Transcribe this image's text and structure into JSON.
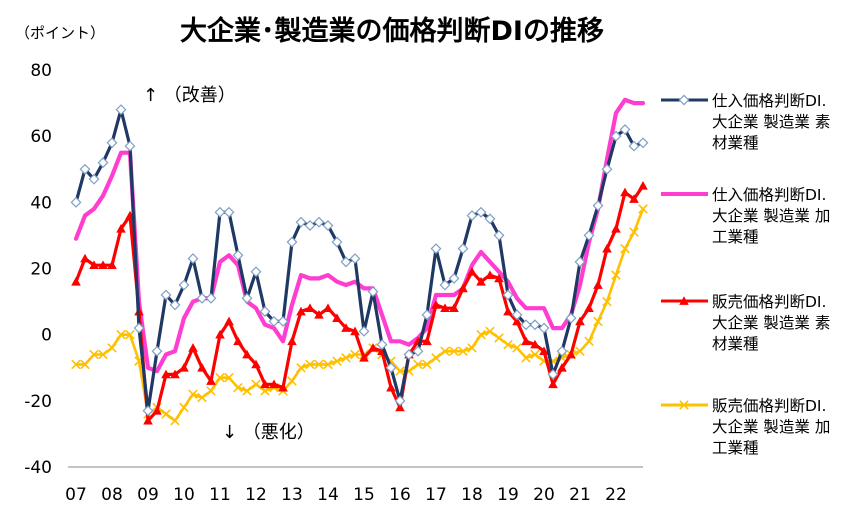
{
  "chart_data": {
    "type": "line",
    "title": "大企業･製造業の価格判断DIの推移",
    "unit_label": "（ポイント）",
    "ylim": [
      -40,
      80
    ],
    "yticks": [
      80,
      60,
      40,
      20,
      0,
      -20,
      -40
    ],
    "x_tick_labels": [
      "07",
      "08",
      "09",
      "10",
      "11",
      "12",
      "13",
      "14",
      "15",
      "16",
      "17",
      "18",
      "19",
      "20",
      "21",
      "22"
    ],
    "annotations": {
      "up": "↑ （改善）",
      "down": "↓ （悪化）"
    },
    "grid": false,
    "legend_position": "right",
    "series": [
      {
        "name": [
          "仕入価格判断DI.",
          "大企業 製造業 素",
          "材業種"
        ],
        "color": "#1f3864",
        "marker": "diamond",
        "x": [
          7.0,
          7.25,
          7.5,
          7.75,
          8.0,
          8.25,
          8.5,
          8.75,
          9.0,
          9.25,
          9.5,
          9.75,
          10.0,
          10.25,
          10.5,
          10.75,
          11.0,
          11.25,
          11.5,
          11.75,
          12.0,
          12.25,
          12.5,
          12.75,
          13.0,
          13.25,
          13.5,
          13.75,
          14.0,
          14.25,
          14.5,
          14.75,
          15.0,
          15.25,
          15.5,
          15.75,
          16.0,
          16.25,
          16.5,
          16.75,
          17.0,
          17.25,
          17.5,
          17.75,
          18.0,
          18.25,
          18.5,
          18.75,
          19.0,
          19.25,
          19.5,
          19.75,
          20.0,
          20.25,
          20.5,
          20.75,
          21.0,
          21.25,
          21.5,
          21.75,
          22.0,
          22.25,
          22.5,
          22.75
        ],
        "values": [
          40,
          50,
          47,
          52,
          58,
          68,
          57,
          2,
          -23,
          -5,
          12,
          9,
          15,
          23,
          11,
          11,
          37,
          37,
          24,
          11,
          19,
          7,
          4,
          4,
          28,
          34,
          33,
          34,
          33,
          28,
          22,
          23,
          1,
          13,
          -3,
          -10,
          -20,
          -6,
          -5,
          6,
          26,
          15,
          17,
          26,
          36,
          37,
          35,
          30,
          12,
          6,
          3,
          3,
          2,
          -12,
          -5,
          5,
          22,
          30,
          39,
          50,
          60,
          62,
          57,
          58
        ]
      },
      {
        "name": [
          "仕入価格判断DI.",
          "大企業 製造業 加",
          "工業種"
        ],
        "color": "#ff3ed1",
        "marker": "none",
        "x": [
          7.0,
          7.25,
          7.5,
          7.75,
          8.0,
          8.25,
          8.5,
          8.75,
          9.0,
          9.25,
          9.5,
          9.75,
          10.0,
          10.25,
          10.5,
          10.75,
          11.0,
          11.25,
          11.5,
          11.75,
          12.0,
          12.25,
          12.5,
          12.75,
          13.0,
          13.25,
          13.5,
          13.75,
          14.0,
          14.25,
          14.5,
          14.75,
          15.0,
          15.25,
          15.5,
          15.75,
          16.0,
          16.25,
          16.5,
          16.75,
          17.0,
          17.25,
          17.5,
          17.75,
          18.0,
          18.25,
          18.5,
          18.75,
          19.0,
          19.25,
          19.5,
          19.75,
          20.0,
          20.25,
          20.5,
          20.75,
          21.0,
          21.25,
          21.5,
          21.75,
          22.0,
          22.25,
          22.5,
          22.75
        ],
        "values": [
          29,
          36,
          38,
          42,
          48,
          55,
          55,
          10,
          -10,
          -11,
          -6,
          -5,
          5,
          10,
          11,
          11,
          22,
          24,
          21,
          10,
          8,
          3,
          2,
          -2,
          9,
          18,
          17,
          17,
          18,
          16,
          15,
          16,
          14,
          14,
          6,
          -2,
          -2,
          -3,
          -1,
          2,
          12,
          12,
          12,
          14,
          21,
          25,
          22,
          19,
          16,
          11,
          8,
          8,
          8,
          2,
          2,
          6,
          15,
          28,
          38,
          53,
          67,
          71,
          70,
          70
        ]
      },
      {
        "name": [
          "販売価格判断DI.",
          "大企業 製造業 素",
          "材業種"
        ],
        "color": "#ff0000",
        "marker": "triangle",
        "x": [
          7.0,
          7.25,
          7.5,
          7.75,
          8.0,
          8.25,
          8.5,
          8.75,
          9.0,
          9.25,
          9.5,
          9.75,
          10.0,
          10.25,
          10.5,
          10.75,
          11.0,
          11.25,
          11.5,
          11.75,
          12.0,
          12.25,
          12.5,
          12.75,
          13.0,
          13.25,
          13.5,
          13.75,
          14.0,
          14.25,
          14.5,
          14.75,
          15.0,
          15.25,
          15.5,
          15.75,
          16.0,
          16.25,
          16.5,
          16.75,
          17.0,
          17.25,
          17.5,
          17.75,
          18.0,
          18.25,
          18.5,
          18.75,
          19.0,
          19.25,
          19.5,
          19.75,
          20.0,
          20.25,
          20.5,
          20.75,
          21.0,
          21.25,
          21.5,
          21.75,
          22.0,
          22.25,
          22.5,
          22.75
        ],
        "values": [
          16,
          23,
          21,
          21,
          21,
          32,
          36,
          7,
          -26,
          -23,
          -12,
          -12,
          -10,
          -4,
          -10,
          -14,
          0,
          4,
          -2,
          -6,
          -9,
          -15,
          -15,
          -16,
          -2,
          7,
          8,
          6,
          8,
          5,
          2,
          1,
          -7,
          -4,
          -5,
          -16,
          -22,
          -6,
          -2,
          -2,
          9,
          8,
          8,
          14,
          19,
          16,
          18,
          17,
          7,
          4,
          -2,
          -3,
          -5,
          -15,
          -10,
          -6,
          4,
          8,
          15,
          26,
          32,
          43,
          41,
          45
        ]
      },
      {
        "name": [
          "販売価格判断DI.",
          "大企業 製造業 加",
          "工業種"
        ],
        "color": "#ffc000",
        "marker": "x",
        "x": [
          7.0,
          7.25,
          7.5,
          7.75,
          8.0,
          8.25,
          8.5,
          8.75,
          9.0,
          9.25,
          9.5,
          9.75,
          10.0,
          10.25,
          10.5,
          10.75,
          11.0,
          11.25,
          11.5,
          11.75,
          12.0,
          12.25,
          12.5,
          12.75,
          13.0,
          13.25,
          13.5,
          13.75,
          14.0,
          14.25,
          14.5,
          14.75,
          15.0,
          15.25,
          15.5,
          15.75,
          16.0,
          16.25,
          16.5,
          16.75,
          17.0,
          17.25,
          17.5,
          17.75,
          18.0,
          18.25,
          18.5,
          18.75,
          19.0,
          19.25,
          19.5,
          19.75,
          20.0,
          20.25,
          20.5,
          20.75,
          21.0,
          21.25,
          21.5,
          21.75,
          22.0,
          22.25,
          22.5,
          22.75
        ],
        "values": [
          -9,
          -9,
          -6,
          -6,
          -4,
          0,
          0,
          -8,
          -24,
          -22,
          -24,
          -26,
          -22,
          -18,
          -19,
          -17,
          -13,
          -13,
          -16,
          -17,
          -15,
          -17,
          -16,
          -17,
          -14,
          -10,
          -9,
          -9,
          -9,
          -8,
          -7,
          -6,
          -6,
          -4,
          -6,
          -8,
          -11,
          -11,
          -9,
          -9,
          -7,
          -5,
          -5,
          -5,
          -4,
          0,
          1,
          -1,
          -3,
          -4,
          -7,
          -6,
          -8,
          -8,
          -7,
          -6,
          -5,
          -2,
          4,
          10,
          18,
          26,
          31,
          38
        ]
      }
    ]
  }
}
